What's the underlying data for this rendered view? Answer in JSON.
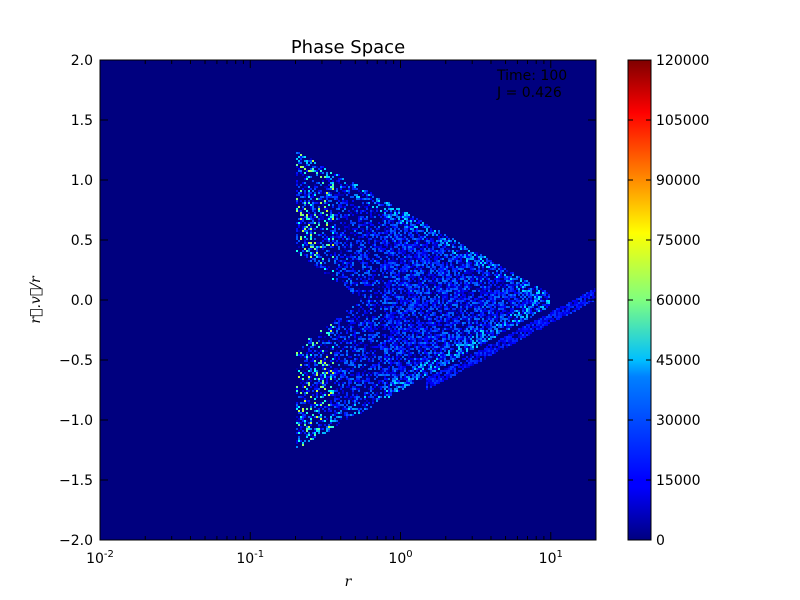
{
  "chart_data": {
    "type": "heatmap",
    "title": "Phase Space",
    "xlabel": "r",
    "ylabel": "r⃗.v⃗/r",
    "xscale": "log",
    "xlim": [
      0.01,
      20
    ],
    "ylim": [
      -2.0,
      2.0
    ],
    "xticks": [
      {
        "value": 0.01,
        "base": "10",
        "exp": "-2"
      },
      {
        "value": 0.1,
        "base": "10",
        "exp": "-1"
      },
      {
        "value": 1,
        "base": "10",
        "exp": "0"
      },
      {
        "value": 10,
        "base": "10",
        "exp": "1"
      }
    ],
    "yticks": [
      {
        "value": 2.0,
        "label": "2.0"
      },
      {
        "value": 1.5,
        "label": "1.5"
      },
      {
        "value": 1.0,
        "label": "1.0"
      },
      {
        "value": 0.5,
        "label": "0.5"
      },
      {
        "value": 0.0,
        "label": "0.0"
      },
      {
        "value": -0.5,
        "label": "−0.5"
      },
      {
        "value": -1.0,
        "label": "−1.0"
      },
      {
        "value": -1.5,
        "label": "−1.5"
      },
      {
        "value": -2.0,
        "label": "−2.0"
      }
    ],
    "annotations": [
      "Time: 100",
      "J = 0.426"
    ],
    "colorbar": {
      "colormap": "jet",
      "min": 0,
      "max": 120000,
      "ticks": [
        {
          "value": 120000,
          "label": "120000"
        },
        {
          "value": 105000,
          "label": "105000"
        },
        {
          "value": 90000,
          "label": "90000"
        },
        {
          "value": 75000,
          "label": "75000"
        },
        {
          "value": 60000,
          "label": "60000"
        },
        {
          "value": 45000,
          "label": "45000"
        },
        {
          "value": 30000,
          "label": "30000"
        },
        {
          "value": 15000,
          "label": "15000"
        },
        {
          "value": 0,
          "label": "0"
        }
      ]
    },
    "background_color": "#00007f",
    "distribution": {
      "description_shape": "wedge",
      "r_inner": 0.2,
      "r_tip": 10,
      "v_max_at_inner": 1.2,
      "tail_r_range": [
        1.5,
        20
      ],
      "tail_v_range": [
        -0.7,
        0.05
      ],
      "typical_count_range": [
        5000,
        30000
      ],
      "peak_count_range": [
        40000,
        70000
      ]
    }
  }
}
